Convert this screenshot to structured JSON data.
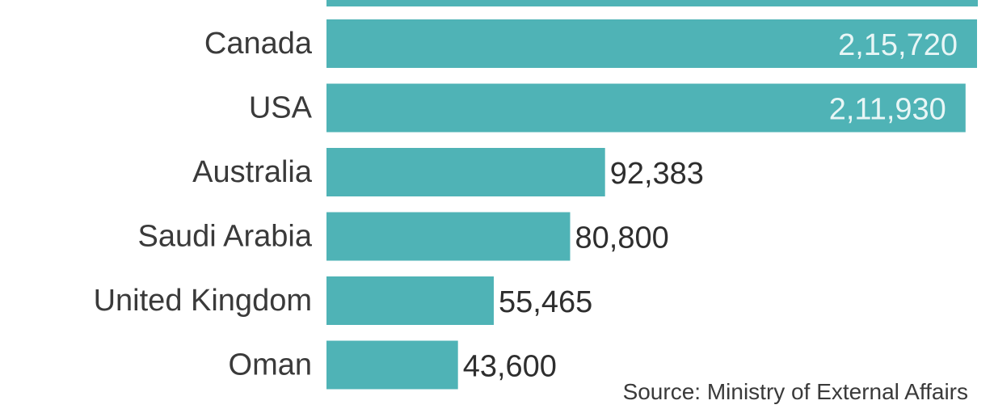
{
  "chart_data": {
    "type": "bar",
    "orientation": "horizontal",
    "categories": [
      "Canada",
      "USA",
      "Australia",
      "Saudi Arabia",
      "United Kingdom",
      "Oman"
    ],
    "values": [
      215720,
      211930,
      92383,
      80800,
      55465,
      43600
    ],
    "value_labels": [
      "2,15,720",
      "2,11,930",
      "92,383",
      "80,800",
      "55,465",
      "43,600"
    ],
    "xlim": [
      0,
      216000
    ],
    "grid": false,
    "bar_color": "#4fb3b6",
    "inside_label_color": "#e8f6f6",
    "outside_label_color": "#2e2e2e"
  },
  "source_text": "Source: Ministry of External Affairs"
}
